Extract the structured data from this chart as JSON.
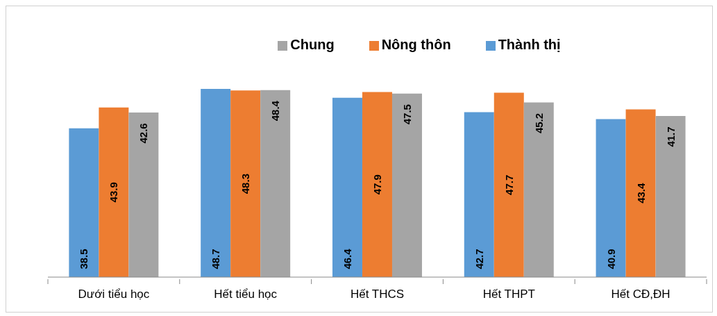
{
  "chart_data": {
    "type": "bar",
    "categories": [
      "Dưới tiểu học",
      "Hết tiểu học",
      "Hết THCS",
      "Hết THPT",
      "Hết CĐ,ĐH"
    ],
    "series": [
      {
        "name": "Thành thị",
        "color": "#5b9bd5",
        "values": [
          38.5,
          48.7,
          46.4,
          42.7,
          40.9
        ]
      },
      {
        "name": "Nông thôn",
        "color": "#ed7d31",
        "values": [
          43.9,
          48.3,
          47.9,
          47.7,
          43.4
        ]
      },
      {
        "name": "Chung",
        "color": "#a5a5a5",
        "values": [
          42.6,
          48.4,
          47.5,
          45.2,
          41.7
        ]
      }
    ],
    "data_labels": true,
    "legend": "top",
    "grid": false
  }
}
